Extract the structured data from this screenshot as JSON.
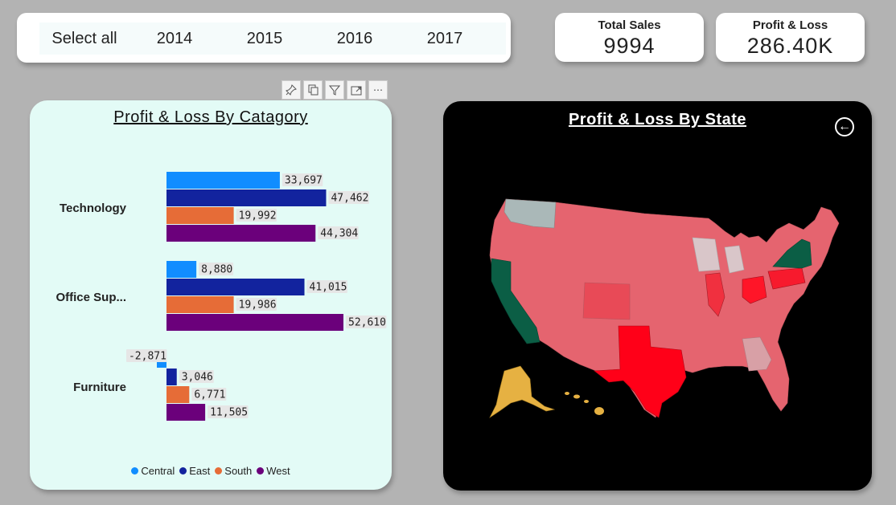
{
  "slicer": {
    "items": [
      "Select all",
      "2014",
      "2015",
      "2016",
      "2017"
    ]
  },
  "kpis": {
    "total_sales": {
      "label": "Total Sales",
      "value": "9994"
    },
    "profit_loss": {
      "label": "Profit & Loss",
      "value": "286.40K"
    }
  },
  "visual_header": {
    "icons": [
      "pin-icon",
      "copy-icon",
      "filter-icon",
      "focus-mode-icon",
      "more-options-icon"
    ]
  },
  "chart_data": [
    {
      "type": "bar",
      "orientation": "horizontal",
      "title": "Profit & Loss By Catagory",
      "categories": [
        "Technology",
        "Office Sup...",
        "Furniture"
      ],
      "series": [
        {
          "name": "Central",
          "color": "#118dff",
          "values": [
            33697,
            8880,
            -2871
          ]
        },
        {
          "name": "East",
          "color": "#12239e",
          "values": [
            47462,
            41015,
            3046
          ]
        },
        {
          "name": "South",
          "color": "#e66c37",
          "values": [
            19992,
            19986,
            6771
          ]
        },
        {
          "name": "West",
          "color": "#6b007b",
          "values": [
            44304,
            52610,
            11505
          ]
        }
      ],
      "data_labels": [
        [
          "33,697",
          "47,462",
          "19,992",
          "44,304"
        ],
        [
          "8,880",
          "41,015",
          "19,986",
          "52,610"
        ],
        [
          "-2,871",
          "3,046",
          "6,771",
          "11,505"
        ]
      ],
      "legend_position": "bottom-center",
      "grid": false
    },
    {
      "type": "map",
      "title": "Profit & Loss By State",
      "region": "United States",
      "highlighted_states": {
        "Texas": "#ff0018",
        "California": "#0b5e45",
        "New York": "#0b5e45",
        "Washington": "#aab8b8",
        "Alaska": "#e6b142",
        "Ohio": "#ff1528",
        "Illinois": "#f0303f",
        "Pennsylvania": "#f71a2d",
        "Michigan": "#d9c6c9",
        "Wisconsin": "#d9c6c9",
        "Georgia": "#d8a0a6",
        "Colorado": "#e84a57"
      },
      "default_state_color": "#e5646f"
    }
  ],
  "map": {
    "back_label": "←"
  }
}
